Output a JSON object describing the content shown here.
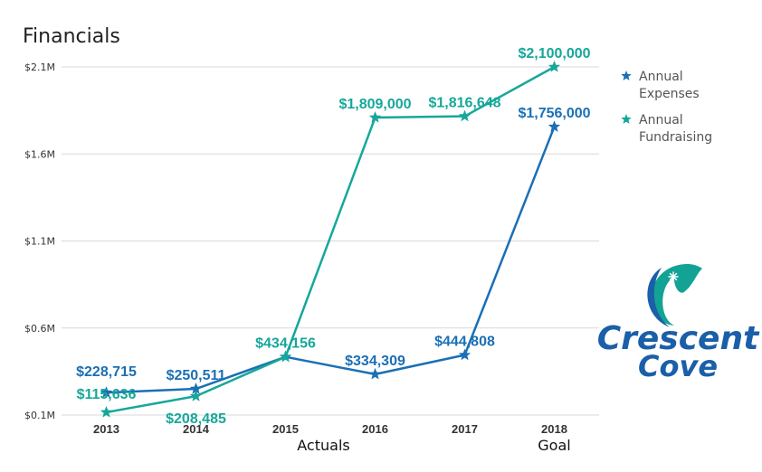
{
  "colors": {
    "expenses": "#1a6fb5",
    "fundraising": "#16a79a",
    "grid": "#d9d9d9",
    "logo_blue": "#1a5fa8",
    "logo_teal": "#12a395"
  },
  "chart_data": {
    "type": "line",
    "title": "Financials",
    "categories": [
      "2013",
      "2014",
      "2015",
      "2016",
      "2017",
      "2018"
    ],
    "category_groups": [
      {
        "label": "Actuals",
        "categories": [
          "2013",
          "2014",
          "2015",
          "2016",
          "2017"
        ]
      },
      {
        "label": "Goal",
        "categories": [
          "2018"
        ]
      }
    ],
    "ylim": [
      100000,
      2100000
    ],
    "yticks": [
      {
        "value": 100000,
        "label": "$0.1M"
      },
      {
        "value": 600000,
        "label": "$0.6M"
      },
      {
        "value": 1100000,
        "label": "$1.1M"
      },
      {
        "value": 1600000,
        "label": "$1.6M"
      },
      {
        "value": 2100000,
        "label": "$2.1M"
      }
    ],
    "grid": true,
    "legend_position": "right",
    "marker": "star",
    "series": [
      {
        "name": "Annual Expenses",
        "legend_lines": [
          "Annual",
          "Expenses"
        ],
        "color": "#1a6fb5",
        "values": [
          228715,
          250511,
          434156,
          334309,
          444808,
          1756000
        ],
        "labels": [
          "$228,715",
          "$250,511",
          "",
          "$334,309",
          "$444,808",
          "$1,756,000"
        ]
      },
      {
        "name": "Annual Fundraising",
        "legend_lines": [
          "Annual",
          "Fundraising"
        ],
        "color": "#16a79a",
        "values": [
          115636,
          208485,
          434156,
          1809000,
          1816648,
          2100000
        ],
        "labels": [
          "$115,636",
          "$208,485",
          "$434,156",
          "$1,809,000",
          "$1,816,648",
          "$2,100,000"
        ]
      }
    ]
  },
  "logo": {
    "line1": "Crescent",
    "line2": "Cove",
    "icon": "crescent-moon-star-icon"
  }
}
